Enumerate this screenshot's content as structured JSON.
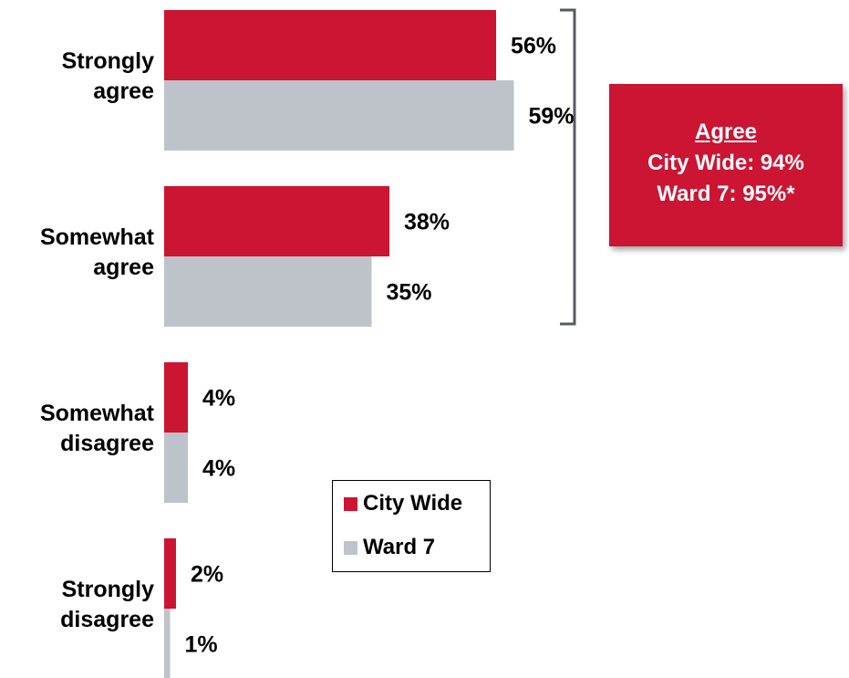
{
  "chart_data": {
    "type": "bar",
    "orientation": "horizontal",
    "categories": [
      [
        "Strongly",
        "agree"
      ],
      [
        "Somewhat",
        "agree"
      ],
      [
        "Somewhat",
        "disagree"
      ],
      [
        "Strongly",
        "disagree"
      ]
    ],
    "series": [
      {
        "name": "City Wide",
        "color": "#cc1433",
        "values": [
          56,
          38,
          4,
          2
        ],
        "labels": [
          "56%",
          "38%",
          "4%",
          "2%"
        ]
      },
      {
        "name": "Ward 7",
        "color": "#bdc3c9",
        "values": [
          59,
          35,
          4,
          1
        ],
        "labels": [
          "59%",
          "35%",
          "4%",
          "1%"
        ]
      }
    ],
    "xlim": [
      0,
      100
    ],
    "grid": false,
    "legend_position": "bottom-center",
    "title": "",
    "xlabel": "",
    "ylabel": ""
  },
  "callout": {
    "heading": "Agree",
    "line1": "City Wide: 94%",
    "line2": "Ward 7: 95%*"
  },
  "colors": {
    "bracket": "#555b61"
  }
}
